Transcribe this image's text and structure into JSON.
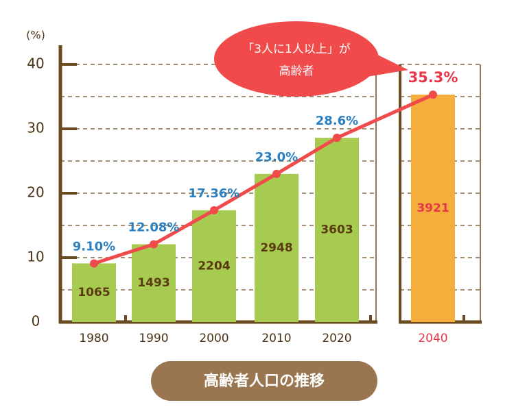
{
  "chart_data": {
    "type": "bar",
    "title": "高齢者人口の推移",
    "y_label": "(%)",
    "annotation": [
      "「3人に1人以上」が",
      "高齢者"
    ],
    "categories": [
      "1980",
      "1990",
      "2000",
      "2010",
      "2020",
      "2040"
    ],
    "values": [
      9.1,
      12.08,
      17.36,
      23.0,
      28.6,
      35.3
    ],
    "value_labels": [
      "9.10%",
      "12.08%",
      "17.36%",
      "23.0%",
      "28.6%",
      "35.3%"
    ],
    "counts": [
      1065,
      1493,
      2204,
      2948,
      3603,
      3921
    ],
    "bar_colors": [
      "#a6cb50",
      "#a6cb50",
      "#a6cb50",
      "#a6cb50",
      "#a6cb50",
      "#f5ad3b"
    ],
    "label_colors": [
      "#2a7fc1",
      "#2a7fc1",
      "#2a7fc1",
      "#2a7fc1",
      "#2a7fc1",
      "#e8374a"
    ],
    "line": true,
    "line_color": "#f04a4a",
    "ylim": [
      0,
      40
    ],
    "yticks": [
      0,
      10,
      20,
      30,
      40
    ],
    "minor_yticks": [
      5,
      15,
      25,
      35
    ],
    "grid": true
  }
}
